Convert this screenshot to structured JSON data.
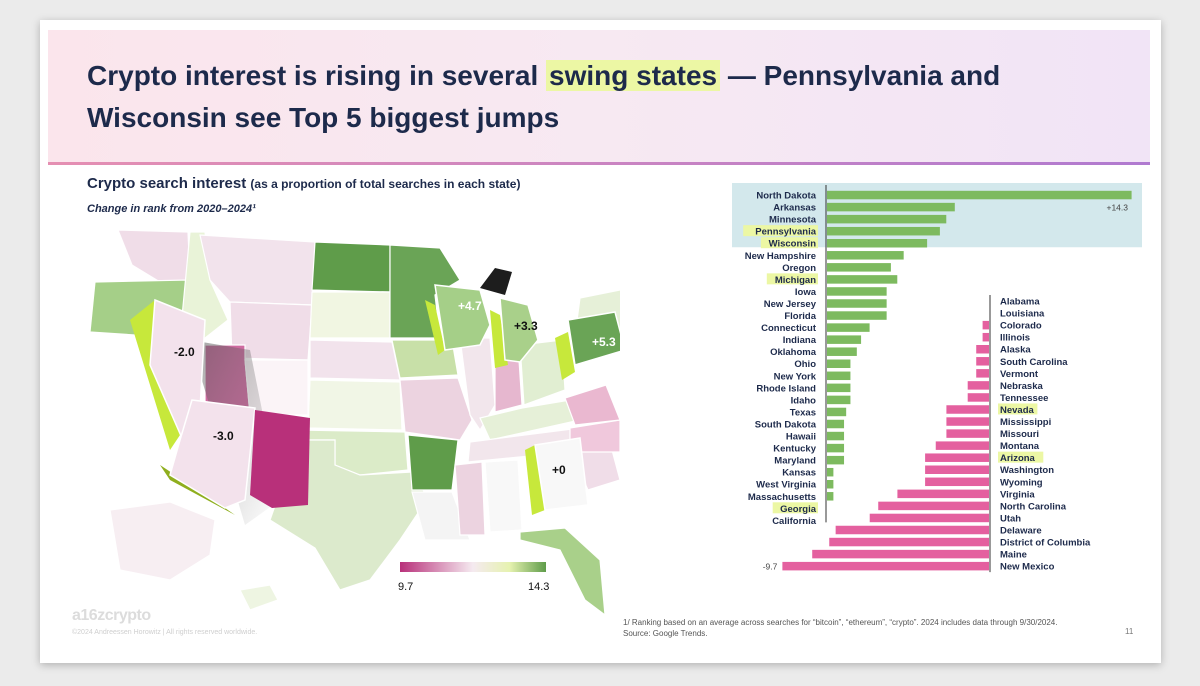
{
  "header": {
    "title_part1": "Crypto interest is rising in several ",
    "title_highlight": "swing states",
    "title_part2": " — Pennsylvania and Wisconsin see Top 5 biggest jumps"
  },
  "map": {
    "title": "Crypto search interest",
    "title_note": "(as a proportion of total searches in each state)",
    "subtitle": "Change in rank from 2020–2024¹",
    "legend_min": "9.7",
    "legend_max": "14.3",
    "callouts": [
      {
        "state": "Nevada",
        "label": "-2.0"
      },
      {
        "state": "Arizona",
        "label": "-3.0"
      },
      {
        "state": "Wisconsin",
        "label": "+4.7"
      },
      {
        "state": "Michigan",
        "label": "+3.3"
      },
      {
        "state": "Pennsylvania",
        "label": "+5.3"
      },
      {
        "state": "Georgia",
        "label": "+0"
      }
    ],
    "colors": {
      "low": "#b8307a",
      "mid": "#f5eaf0",
      "high": "#5f9c4a",
      "extrusion": "#c7e83b"
    }
  },
  "chart_data": {
    "type": "bar",
    "orientation": "horizontal-diverging",
    "title": "",
    "max_label": "+14.3",
    "min_label": "-9.7",
    "positive": [
      {
        "state": "North Dakota",
        "value": 14.3,
        "highlight": false,
        "top5": true
      },
      {
        "state": "Arkansas",
        "value": 6.0,
        "highlight": false,
        "top5": true
      },
      {
        "state": "Minnesota",
        "value": 5.6,
        "highlight": false,
        "top5": true
      },
      {
        "state": "Pennsylvania",
        "value": 5.3,
        "highlight": true,
        "top5": true
      },
      {
        "state": "Wisconsin",
        "value": 4.7,
        "highlight": true,
        "top5": true
      },
      {
        "state": "New Hampshire",
        "value": 3.6,
        "highlight": false,
        "top5": false
      },
      {
        "state": "Oregon",
        "value": 3.0,
        "highlight": false,
        "top5": false
      },
      {
        "state": "Michigan",
        "value": 3.3,
        "highlight": true,
        "top5": false
      },
      {
        "state": "Iowa",
        "value": 2.8,
        "highlight": false,
        "top5": false
      },
      {
        "state": "New Jersey",
        "value": 2.8,
        "highlight": false,
        "top5": false
      },
      {
        "state": "Florida",
        "value": 2.8,
        "highlight": false,
        "top5": false
      },
      {
        "state": "Connecticut",
        "value": 2.0,
        "highlight": false,
        "top5": false
      },
      {
        "state": "Indiana",
        "value": 1.6,
        "highlight": false,
        "top5": false
      },
      {
        "state": "Oklahoma",
        "value": 1.4,
        "highlight": false,
        "top5": false
      },
      {
        "state": "Ohio",
        "value": 1.1,
        "highlight": false,
        "top5": false
      },
      {
        "state": "New York",
        "value": 1.1,
        "highlight": false,
        "top5": false
      },
      {
        "state": "Rhode Island",
        "value": 1.1,
        "highlight": false,
        "top5": false
      },
      {
        "state": "Idaho",
        "value": 1.1,
        "highlight": false,
        "top5": false
      },
      {
        "state": "Texas",
        "value": 0.9,
        "highlight": false,
        "top5": false
      },
      {
        "state": "South Dakota",
        "value": 0.8,
        "highlight": false,
        "top5": false
      },
      {
        "state": "Hawaii",
        "value": 0.8,
        "highlight": false,
        "top5": false
      },
      {
        "state": "Kentucky",
        "value": 0.8,
        "highlight": false,
        "top5": false
      },
      {
        "state": "Maryland",
        "value": 0.8,
        "highlight": false,
        "top5": false
      },
      {
        "state": "Kansas",
        "value": 0.3,
        "highlight": false,
        "top5": false
      },
      {
        "state": "West Virginia",
        "value": 0.3,
        "highlight": false,
        "top5": false
      },
      {
        "state": "Massachusetts",
        "value": 0.3,
        "highlight": false,
        "top5": false
      },
      {
        "state": "Georgia",
        "value": 0.0,
        "highlight": true,
        "top5": false
      },
      {
        "state": "California",
        "value": 0.0,
        "highlight": false,
        "top5": false
      }
    ],
    "negative": [
      {
        "state": "Alabama",
        "value": 0.0,
        "highlight": false
      },
      {
        "state": "Louisiana",
        "value": 0.0,
        "highlight": false
      },
      {
        "state": "Colorado",
        "value": -0.3,
        "highlight": false
      },
      {
        "state": "Illinois",
        "value": -0.3,
        "highlight": false
      },
      {
        "state": "Alaska",
        "value": -0.6,
        "highlight": false
      },
      {
        "state": "South Carolina",
        "value": -0.6,
        "highlight": false
      },
      {
        "state": "Vermont",
        "value": -0.6,
        "highlight": false
      },
      {
        "state": "Nebraska",
        "value": -1.0,
        "highlight": false
      },
      {
        "state": "Tennessee",
        "value": -1.0,
        "highlight": false
      },
      {
        "state": "Nevada",
        "value": -2.0,
        "highlight": true
      },
      {
        "state": "Mississippi",
        "value": -2.0,
        "highlight": false
      },
      {
        "state": "Missouri",
        "value": -2.0,
        "highlight": false
      },
      {
        "state": "Montana",
        "value": -2.5,
        "highlight": false
      },
      {
        "state": "Arizona",
        "value": -3.0,
        "highlight": true
      },
      {
        "state": "Washington",
        "value": -3.0,
        "highlight": false
      },
      {
        "state": "Wyoming",
        "value": -3.0,
        "highlight": false
      },
      {
        "state": "Virginia",
        "value": -4.3,
        "highlight": false
      },
      {
        "state": "North Carolina",
        "value": -5.2,
        "highlight": false
      },
      {
        "state": "Utah",
        "value": -5.6,
        "highlight": false
      },
      {
        "state": "Delaware",
        "value": -7.2,
        "highlight": false
      },
      {
        "state": "District of Columbia",
        "value": -7.5,
        "highlight": false
      },
      {
        "state": "Maine",
        "value": -8.3,
        "highlight": false
      },
      {
        "state": "New Mexico",
        "value": -9.7,
        "highlight": false
      }
    ],
    "colors": {
      "positive": "#7dba5f",
      "negative": "#e4609f",
      "highlight": "#ecf7a4",
      "top5_band": "#d3e8ec"
    }
  },
  "footer": {
    "logo": "a16zcrypto",
    "copyright": "©2024 Andreessen Horowitz  |  All rights reserved worldwide.",
    "footnote_line1": "1/ Ranking based on an average across searches for “bitcoin”, “ethereum”, “crypto”. 2024 includes data through 9/30/2024.",
    "footnote_line2": "Source: Google Trends.",
    "page_number": "11"
  }
}
